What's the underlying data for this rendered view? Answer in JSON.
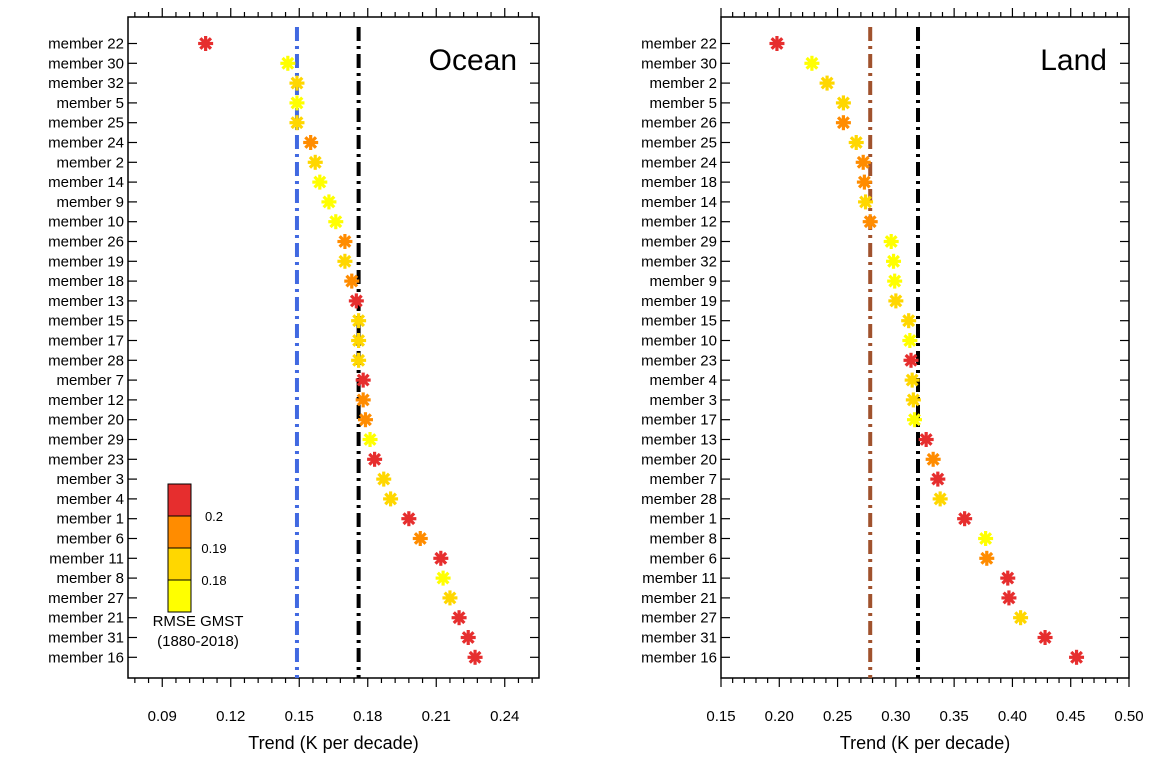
{
  "chart_data": [
    {
      "type": "scatter",
      "title": "Ocean",
      "xlabel": "Trend (K per decade)",
      "ylabel": "",
      "xlim": [
        0.075,
        0.255
      ],
      "xticks": [
        "0.09",
        "0.12",
        "0.15",
        "0.18",
        "0.21",
        "0.24"
      ],
      "xtick_values": [
        0.09,
        0.12,
        0.15,
        0.18,
        0.21,
        0.24
      ],
      "reference_lines": [
        {
          "x": 0.149,
          "color": "#4169e1",
          "style": "dash-dot"
        },
        {
          "x": 0.176,
          "color": "#000000",
          "style": "dash-dot"
        }
      ],
      "categories": [
        "member 22",
        "member 30",
        "member 32",
        "member 5",
        "member 25",
        "member 24",
        "member 2",
        "member 14",
        "member 9",
        "member 10",
        "member 26",
        "member 19",
        "member 18",
        "member 13",
        "member 15",
        "member 17",
        "member 28",
        "member 7",
        "member 12",
        "member 20",
        "member 29",
        "member 23",
        "member 3",
        "member 4",
        "member 1",
        "member 6",
        "member 11",
        "member 8",
        "member 27",
        "member 21",
        "member 31",
        "member 16"
      ],
      "values": [
        0.109,
        0.145,
        0.149,
        0.149,
        0.149,
        0.155,
        0.157,
        0.159,
        0.163,
        0.166,
        0.17,
        0.17,
        0.173,
        0.175,
        0.176,
        0.176,
        0.176,
        0.178,
        0.178,
        0.179,
        0.181,
        0.183,
        0.187,
        0.19,
        0.198,
        0.203,
        0.212,
        0.213,
        0.216,
        0.22,
        0.224,
        0.227
      ],
      "colors": [
        "#e62e2e",
        "#ffff00",
        "#ffd700",
        "#ffff00",
        "#ffd700",
        "#ff8c00",
        "#ffd700",
        "#ffff00",
        "#ffff00",
        "#ffff00",
        "#ff8c00",
        "#ffd700",
        "#ff8c00",
        "#e62e2e",
        "#ffd700",
        "#ffd700",
        "#ffd700",
        "#e62e2e",
        "#ff8c00",
        "#ff8c00",
        "#ffff00",
        "#e62e2e",
        "#ffd700",
        "#ffd700",
        "#e62e2e",
        "#ff8c00",
        "#e62e2e",
        "#ffff00",
        "#ffd700",
        "#e62e2e",
        "#e62e2e",
        "#e62e2e"
      ],
      "colorbar": {
        "title_lines": [
          "RMSE GMST",
          "(1880-2018)"
        ],
        "labels": [
          "0.2",
          "0.19",
          "0.18"
        ],
        "colors": [
          "#ffff00",
          "#ffd700",
          "#ff8c00",
          "#e62e2e"
        ]
      },
      "grid": false
    },
    {
      "type": "scatter",
      "title": "Land",
      "xlabel": "Trend (K per decade)",
      "ylabel": "",
      "xlim": [
        0.15,
        0.5
      ],
      "xticks": [
        "0.15",
        "0.20",
        "0.25",
        "0.30",
        "0.35",
        "0.40",
        "0.45",
        "0.50"
      ],
      "xtick_values": [
        0.15,
        0.2,
        0.25,
        0.3,
        0.35,
        0.4,
        0.45,
        0.5
      ],
      "reference_lines": [
        {
          "x": 0.278,
          "color": "#a0522d",
          "style": "dash-dot"
        },
        {
          "x": 0.319,
          "color": "#000000",
          "style": "dash-dot"
        }
      ],
      "categories": [
        "member 22",
        "member 30",
        "member 2",
        "member 5",
        "member 26",
        "member 25",
        "member 24",
        "member 18",
        "member 14",
        "member 12",
        "member 29",
        "member 32",
        "member 9",
        "member 19",
        "member 15",
        "member 10",
        "member 23",
        "member 4",
        "member 3",
        "member 17",
        "member 13",
        "member 20",
        "member 7",
        "member 28",
        "member 1",
        "member 8",
        "member 6",
        "member 11",
        "member 21",
        "member 27",
        "member 31",
        "member 16"
      ],
      "values": [
        0.198,
        0.228,
        0.241,
        0.255,
        0.255,
        0.266,
        0.272,
        0.273,
        0.274,
        0.278,
        0.296,
        0.298,
        0.299,
        0.3,
        0.311,
        0.312,
        0.313,
        0.314,
        0.315,
        0.316,
        0.326,
        0.332,
        0.336,
        0.338,
        0.359,
        0.377,
        0.378,
        0.396,
        0.397,
        0.407,
        0.428,
        0.455
      ],
      "colors": [
        "#e62e2e",
        "#ffff00",
        "#ffd700",
        "#ffd700",
        "#ff8c00",
        "#ffd700",
        "#ff8c00",
        "#ff8c00",
        "#ffd700",
        "#ff8c00",
        "#ffff00",
        "#ffff00",
        "#ffff00",
        "#ffd700",
        "#ffd700",
        "#ffff00",
        "#e62e2e",
        "#ffd700",
        "#ffd700",
        "#ffff00",
        "#e62e2e",
        "#ff8c00",
        "#e62e2e",
        "#ffd700",
        "#e62e2e",
        "#ffff00",
        "#ff8c00",
        "#e62e2e",
        "#e62e2e",
        "#ffd700",
        "#e62e2e",
        "#e62e2e"
      ],
      "grid": false
    }
  ]
}
